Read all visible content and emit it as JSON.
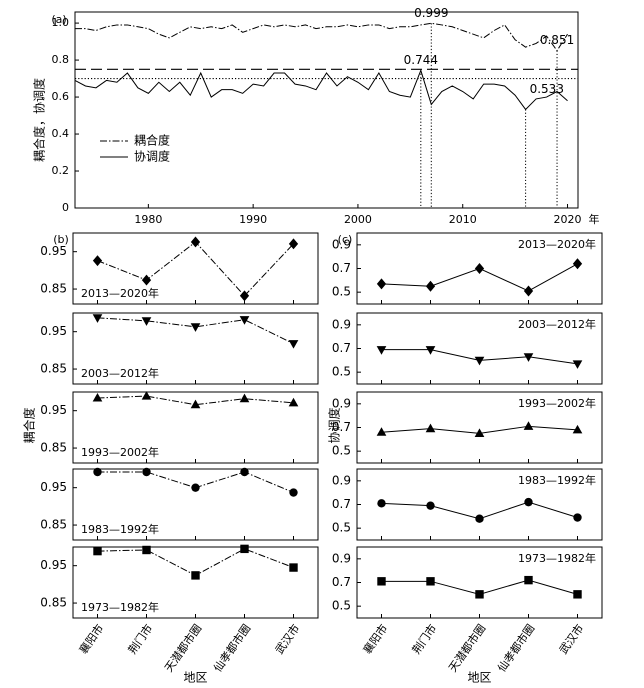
{
  "chart_data": [
    {
      "type": "line",
      "panel_label": "(a)",
      "ylabel": "耦合度，协调度",
      "xlabel": "年",
      "color": "#000",
      "x": [
        1973,
        1974,
        1975,
        1976,
        1977,
        1978,
        1979,
        1980,
        1981,
        1982,
        1983,
        1984,
        1985,
        1986,
        1987,
        1988,
        1989,
        1990,
        1991,
        1992,
        1993,
        1994,
        1995,
        1996,
        1997,
        1998,
        1999,
        2000,
        2001,
        2002,
        2003,
        2004,
        2005,
        2006,
        2007,
        2008,
        2009,
        2010,
        2011,
        2012,
        2013,
        2014,
        2015,
        2016,
        2017,
        2018,
        2019,
        2020
      ],
      "series": [
        {
          "name": "耦合度",
          "style": "dashdot",
          "values": [
            0.97,
            0.97,
            0.96,
            0.98,
            0.99,
            0.99,
            0.98,
            0.97,
            0.94,
            0.92,
            0.95,
            0.98,
            0.97,
            0.98,
            0.97,
            0.99,
            0.95,
            0.97,
            0.99,
            0.98,
            0.99,
            0.98,
            0.99,
            0.97,
            0.98,
            0.98,
            0.99,
            0.98,
            0.99,
            0.99,
            0.97,
            0.98,
            0.98,
            0.99,
            0.999,
            0.99,
            0.98,
            0.96,
            0.94,
            0.92,
            0.96,
            0.99,
            0.91,
            0.87,
            0.89,
            0.93,
            0.851,
            0.94
          ]
        },
        {
          "name": "协调度",
          "style": "solid",
          "values": [
            0.69,
            0.66,
            0.65,
            0.69,
            0.68,
            0.73,
            0.65,
            0.62,
            0.68,
            0.63,
            0.68,
            0.61,
            0.73,
            0.6,
            0.64,
            0.64,
            0.62,
            0.67,
            0.66,
            0.73,
            0.73,
            0.67,
            0.66,
            0.64,
            0.73,
            0.66,
            0.71,
            0.68,
            0.64,
            0.73,
            0.63,
            0.61,
            0.6,
            0.744,
            0.56,
            0.63,
            0.66,
            0.63,
            0.59,
            0.67,
            0.67,
            0.66,
            0.61,
            0.533,
            0.59,
            0.6,
            0.63,
            0.58
          ]
        }
      ],
      "reference_lines": [
        {
          "value": 0.75,
          "style": "dashed"
        },
        {
          "value": 0.7,
          "style": "dotted"
        }
      ],
      "annotations": [
        {
          "x": 2006,
          "y": 0.744
        },
        {
          "x": 2007,
          "y": 0.999
        },
        {
          "x": 2016,
          "y": 0.533
        },
        {
          "x": 2019,
          "y": 0.851
        }
      ],
      "xlim": [
        1973,
        2021
      ],
      "xticks": [
        1980,
        1990,
        2000,
        2010,
        2020
      ],
      "ylim": [
        0,
        1.06
      ],
      "yticks": [
        0,
        0.2,
        0.4,
        0.6,
        0.8,
        {
          "value": 1,
          "label": "1.0"
        }
      ],
      "legend": "center left"
    },
    {
      "type": "small_multiples",
      "panel_label": "(b)",
      "ylabel": "耦合度",
      "xlabel": "地区",
      "style": "dashdot",
      "color": "#000",
      "label_corner": "lower left",
      "categories": [
        "襄阳市",
        "荆门市",
        "天潜都市圈",
        "仙孝都市圈",
        "武汉市"
      ],
      "ylim": [
        0.81,
        1.0
      ],
      "yticks": [
        0.85,
        0.95
      ],
      "subplots": [
        {
          "label": "2013—2020年",
          "marker": "diamond",
          "values": [
            0.926,
            0.874,
            0.976,
            0.832,
            0.971
          ]
        },
        {
          "label": "2003—2012年",
          "marker": "triangle-down",
          "values": [
            0.987,
            0.979,
            0.963,
            0.982,
            0.918
          ]
        },
        {
          "label": "1993—2002年",
          "marker": "triangle-up",
          "values": [
            0.984,
            0.989,
            0.966,
            0.982,
            0.971
          ]
        },
        {
          "label": "1983—1992年",
          "marker": "circle",
          "values": [
            0.992,
            0.992,
            0.95,
            0.992,
            0.937
          ]
        },
        {
          "label": "1973—1982年",
          "marker": "square",
          "values": [
            0.989,
            0.992,
            0.924,
            0.995,
            0.945
          ]
        }
      ]
    },
    {
      "type": "small_multiples",
      "panel_label": "(c)",
      "ylabel": "协调度",
      "xlabel": "地区",
      "style": "solid",
      "color": "#000",
      "label_corner": "upper right",
      "categories": [
        "襄阳市",
        "荆门市",
        "天潜都市圈",
        "仙孝都市圈",
        "武汉市"
      ],
      "ylim": [
        0.4,
        1.0
      ],
      "yticks": [
        0.5,
        0.7,
        0.9
      ],
      "subplots": [
        {
          "label": "2013—2020年",
          "marker": "diamond",
          "values": [
            0.57,
            0.55,
            0.7,
            0.51,
            0.74
          ]
        },
        {
          "label": "2003—2012年",
          "marker": "triangle-down",
          "values": [
            0.69,
            0.69,
            0.6,
            0.63,
            0.57
          ]
        },
        {
          "label": "1993—2002年",
          "marker": "triangle-up",
          "values": [
            0.66,
            0.69,
            0.65,
            0.71,
            0.68
          ]
        },
        {
          "label": "1983—1992年",
          "marker": "circle",
          "values": [
            0.71,
            0.69,
            0.58,
            0.72,
            0.59
          ]
        },
        {
          "label": "1973—1982年",
          "marker": "square",
          "values": [
            0.71,
            0.71,
            0.6,
            0.72,
            0.6
          ]
        }
      ]
    }
  ]
}
